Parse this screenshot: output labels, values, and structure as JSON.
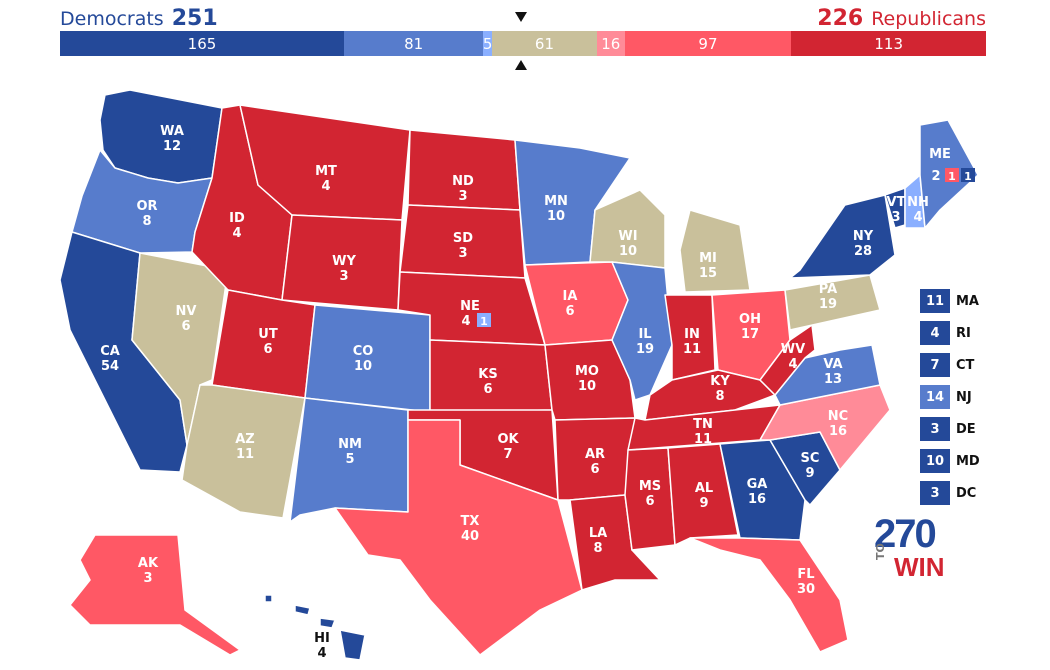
{
  "header": {
    "dem_name": "Democrats",
    "dem_total": "251",
    "rep_total": "226",
    "rep_name": "Republicans"
  },
  "colors": {
    "safe_dem": "#244999",
    "likely_dem": "#577ccc",
    "lean_dem": "#8aafff",
    "tossup": "#c9c09b",
    "lean_rep": "#ff8b98",
    "likely_rep": "#ff5865",
    "safe_rep": "#d22532"
  },
  "summary_bar": [
    {
      "rating": "safe_dem",
      "value": "165"
    },
    {
      "rating": "likely_dem",
      "value": "81"
    },
    {
      "rating": "lean_dem",
      "value": "5"
    },
    {
      "rating": "tossup",
      "value": "61"
    },
    {
      "rating": "lean_rep",
      "value": "16"
    },
    {
      "rating": "likely_rep",
      "value": "97"
    },
    {
      "rating": "safe_rep",
      "value": "113"
    }
  ],
  "states": {
    "WA": {
      "name": "WA",
      "ev": "12",
      "rating": "safe_dem"
    },
    "OR": {
      "name": "OR",
      "ev": "8",
      "rating": "likely_dem"
    },
    "CA": {
      "name": "CA",
      "ev": "54",
      "rating": "safe_dem"
    },
    "NV": {
      "name": "NV",
      "ev": "6",
      "rating": "tossup"
    },
    "ID": {
      "name": "ID",
      "ev": "4",
      "rating": "safe_rep"
    },
    "MT": {
      "name": "MT",
      "ev": "4",
      "rating": "safe_rep"
    },
    "WY": {
      "name": "WY",
      "ev": "3",
      "rating": "safe_rep"
    },
    "UT": {
      "name": "UT",
      "ev": "6",
      "rating": "safe_rep"
    },
    "AZ": {
      "name": "AZ",
      "ev": "11",
      "rating": "tossup"
    },
    "CO": {
      "name": "CO",
      "ev": "10",
      "rating": "likely_dem"
    },
    "NM": {
      "name": "NM",
      "ev": "5",
      "rating": "likely_dem"
    },
    "ND": {
      "name": "ND",
      "ev": "3",
      "rating": "safe_rep"
    },
    "SD": {
      "name": "SD",
      "ev": "3",
      "rating": "safe_rep"
    },
    "NE": {
      "name": "NE",
      "ev": "4",
      "ev_extra": "1",
      "rating": "safe_rep"
    },
    "KS": {
      "name": "KS",
      "ev": "6",
      "rating": "safe_rep"
    },
    "OK": {
      "name": "OK",
      "ev": "7",
      "rating": "safe_rep"
    },
    "TX": {
      "name": "TX",
      "ev": "40",
      "rating": "likely_rep"
    },
    "MN": {
      "name": "MN",
      "ev": "10",
      "rating": "likely_dem"
    },
    "IA": {
      "name": "IA",
      "ev": "6",
      "rating": "likely_rep"
    },
    "MO": {
      "name": "MO",
      "ev": "10",
      "rating": "safe_rep"
    },
    "AR": {
      "name": "AR",
      "ev": "6",
      "rating": "safe_rep"
    },
    "LA": {
      "name": "LA",
      "ev": "8",
      "rating": "safe_rep"
    },
    "WI": {
      "name": "WI",
      "ev": "10",
      "rating": "tossup"
    },
    "IL": {
      "name": "IL",
      "ev": "19",
      "rating": "likely_dem"
    },
    "MI": {
      "name": "MI",
      "ev": "15",
      "rating": "tossup"
    },
    "IN": {
      "name": "IN",
      "ev": "11",
      "rating": "safe_rep"
    },
    "OH": {
      "name": "OH",
      "ev": "17",
      "rating": "likely_rep"
    },
    "KY": {
      "name": "KY",
      "ev": "8",
      "rating": "safe_rep"
    },
    "TN": {
      "name": "TN",
      "ev": "11",
      "rating": "safe_rep"
    },
    "MS": {
      "name": "MS",
      "ev": "6",
      "rating": "safe_rep"
    },
    "AL": {
      "name": "AL",
      "ev": "9",
      "rating": "safe_rep"
    },
    "GA": {
      "name": "GA",
      "ev": "16",
      "rating": "safe_dem"
    },
    "FL": {
      "name": "FL",
      "ev": "30",
      "rating": "likely_rep"
    },
    "SC": {
      "name": "SC",
      "ev": "9",
      "rating": "safe_dem"
    },
    "NC": {
      "name": "NC",
      "ev": "16",
      "rating": "lean_rep"
    },
    "VA": {
      "name": "VA",
      "ev": "13",
      "rating": "likely_dem"
    },
    "WV": {
      "name": "WV",
      "ev": "4",
      "rating": "safe_rep"
    },
    "PA": {
      "name": "PA",
      "ev": "19",
      "rating": "tossup"
    },
    "NY": {
      "name": "NY",
      "ev": "28",
      "rating": "safe_dem"
    },
    "VT": {
      "name": "VT",
      "ev": "3",
      "rating": "safe_dem"
    },
    "NH": {
      "name": "NH",
      "ev": "4",
      "rating": "lean_dem"
    },
    "ME": {
      "name": "ME",
      "ev": "2",
      "ev_cd1": "1",
      "ev_cd2": "1",
      "rating": "likely_dem"
    },
    "AK": {
      "name": "AK",
      "ev": "3",
      "rating": "likely_rep"
    },
    "HI": {
      "name": "HI",
      "ev": "4",
      "rating": "safe_dem"
    }
  },
  "small_states": [
    {
      "ev": "11",
      "abbr": "MA",
      "rating": "safe_dem"
    },
    {
      "ev": "4",
      "abbr": "RI",
      "rating": "safe_dem"
    },
    {
      "ev": "7",
      "abbr": "CT",
      "rating": "safe_dem"
    },
    {
      "ev": "14",
      "abbr": "NJ",
      "rating": "likely_dem"
    },
    {
      "ev": "3",
      "abbr": "DE",
      "rating": "safe_dem"
    },
    {
      "ev": "10",
      "abbr": "MD",
      "rating": "safe_dem"
    },
    {
      "ev": "3",
      "abbr": "DC",
      "rating": "safe_dem"
    }
  ],
  "logo": {
    "number": "270",
    "to": "TO",
    "win": "WIN"
  }
}
